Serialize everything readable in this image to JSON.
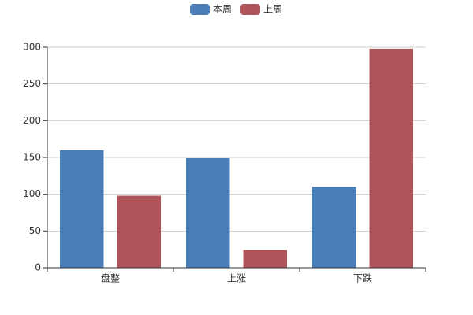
{
  "chart_data": {
    "type": "bar",
    "categories": [
      "盘整",
      "上涨",
      "下跌"
    ],
    "series": [
      {
        "name": "本周",
        "color": "#4a7ebb",
        "values": [
          160,
          150,
          110
        ]
      },
      {
        "name": "上周",
        "color": "#b0545a",
        "values": [
          98,
          24,
          298
        ]
      }
    ],
    "ylim": [
      0,
      300
    ],
    "yticks": [
      0,
      50,
      100,
      150,
      200,
      250,
      300
    ],
    "grid": true,
    "legend": "top"
  }
}
